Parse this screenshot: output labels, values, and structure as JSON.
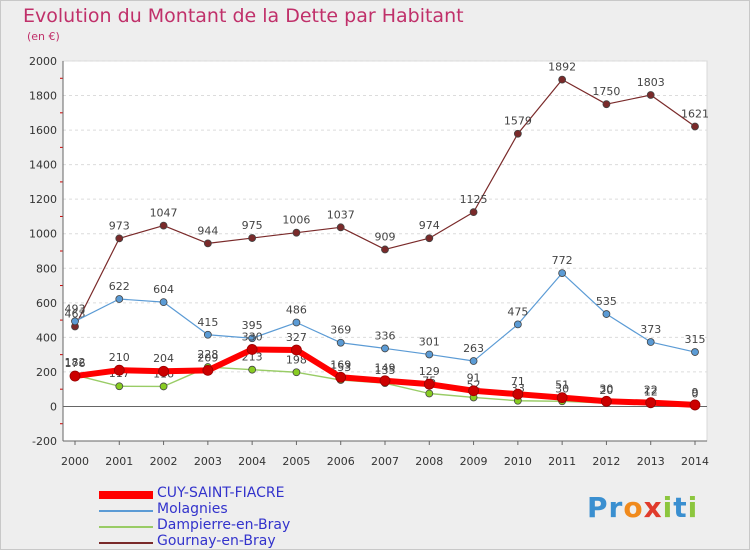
{
  "title": "Evolution du Montant de la Dette par Habitant",
  "subtitle": "(en €)",
  "logo": {
    "text": "Proxiti",
    "letters": [
      "P",
      "r",
      "o",
      "x",
      "i",
      "t",
      "i"
    ],
    "colors": [
      "#3a8fd0",
      "#3a8fd0",
      "#f08a1c",
      "#e03b2c",
      "#8cc63e",
      "#3a8fd0",
      "#8cc63e"
    ]
  },
  "chart_data": {
    "type": "line",
    "title": "Evolution du Montant de la Dette par Habitant",
    "ylabel": "(en €)",
    "xlabel": "",
    "x": [
      "2000",
      "2001",
      "2002",
      "2003",
      "2004",
      "2005",
      "2006",
      "2007",
      "2008",
      "2009",
      "2010",
      "2011",
      "2012",
      "2013",
      "2014"
    ],
    "ylim": [
      -200,
      2000
    ],
    "yticks": [
      "-200",
      "0",
      "200",
      "400",
      "600",
      "800",
      "1000",
      "1200",
      "1400",
      "1600",
      "1800",
      "2000"
    ],
    "grid": "horizontal",
    "legend_position": "bottom-left",
    "series": [
      {
        "name": "Gournay-en-Bray",
        "color": "#7a2a2a",
        "width": 1.2,
        "values": [
          463,
          973,
          1047,
          944,
          975,
          1006,
          1037,
          909,
          974,
          1125,
          1579,
          1892,
          1750,
          1803,
          1621
        ],
        "labels": [
          "463",
          "973",
          "1047",
          "944",
          "975",
          "1006",
          "1037",
          "909",
          "974",
          "1125",
          "1579",
          "1892",
          "1750",
          "1803",
          "1621"
        ]
      },
      {
        "name": "Molagnies",
        "color": "#5b9bd5",
        "width": 1.2,
        "values": [
          493,
          622,
          604,
          415,
          395,
          486,
          369,
          336,
          301,
          263,
          475,
          772,
          535,
          373,
          315
        ],
        "labels": [
          "493",
          "622",
          "604",
          "415",
          "395",
          "486",
          "369",
          "336",
          "301",
          "263",
          "475",
          "772",
          "535",
          "373",
          "315"
        ]
      },
      {
        "name": "Dampierre-en-Bray",
        "color": "#99cc66",
        "width": 1.4,
        "values": [
          182,
          117,
          116,
          228,
          213,
          198,
          153,
          135,
          75,
          52,
          33,
          30,
          20,
          12,
          0
        ],
        "labels": [
          "182",
          "117",
          "116",
          "228",
          "213",
          "198",
          "153",
          "135",
          "75",
          "52",
          "33",
          "30",
          "20",
          "12",
          "0"
        ]
      },
      {
        "name": "CUY-SAINT-FIACRE",
        "color": "#ff0000",
        "width": 6,
        "values": [
          176,
          210,
          204,
          209,
          330,
          327,
          169,
          149,
          129,
          91,
          71,
          51,
          30,
          22,
          9
        ],
        "labels": [
          "176",
          "210",
          "204",
          "209",
          "330",
          "327",
          "169",
          "149",
          "129",
          "91",
          "71",
          "51",
          "30",
          "22",
          "9"
        ]
      }
    ]
  },
  "legend": [
    {
      "name": "CUY-SAINT-FIACRE",
      "color": "#ff0000",
      "thickness": 8
    },
    {
      "name": "Molagnies",
      "color": "#5b9bd5",
      "thickness": 2
    },
    {
      "name": "Dampierre-en-Bray",
      "color": "#99cc66",
      "thickness": 2
    },
    {
      "name": "Gournay-en-Bray",
      "color": "#7a2a2a",
      "thickness": 2
    }
  ]
}
